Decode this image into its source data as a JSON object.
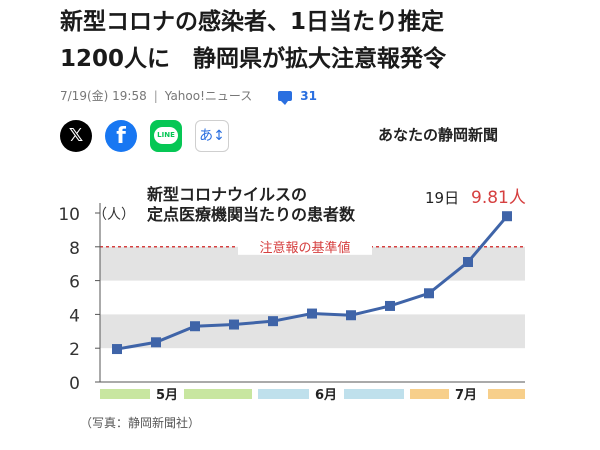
{
  "article": {
    "headline_lines": [
      "新型コロナの感染者、1日当たり推定",
      "1200人に　静岡県が拡大注意報発令"
    ],
    "date": "7/19(金) 19:58",
    "source": "Yahoo!ニュース",
    "comment_count": "31",
    "publisher": "あなたの静岡新聞",
    "photo_caption": "（写真：静岡新聞社）"
  },
  "share": {
    "x_label": "𝕏",
    "facebook_label": "f",
    "line_label": "LINE",
    "font_size_label": "あ↕"
  },
  "chart_data": {
    "type": "line",
    "title_lines": [
      "新型コロナウイルスの",
      "定点医療機関当たりの患者数"
    ],
    "unit_label": "（人）",
    "y_ticks": [
      "0",
      "2",
      "4",
      "6",
      "8",
      "10"
    ],
    "ylim": [
      0,
      10
    ],
    "grid": false,
    "threshold_value": 8,
    "threshold_label": "注意報の基準値",
    "values": [
      1.95,
      2.35,
      3.3,
      3.4,
      3.6,
      4.05,
      3.95,
      4.5,
      5.25,
      7.1,
      9.81
    ],
    "last_point_label_date": "19日",
    "last_point_label_value": "9.81人",
    "months": [
      {
        "label": "5月",
        "color": "#c8e6a0"
      },
      {
        "label": "6月",
        "color": "#bfe0ec"
      },
      {
        "label": "7月",
        "color": "#f7cf8b"
      }
    ],
    "colors": {
      "line": "#3f64a8",
      "threshold": "#d64040",
      "band": "#e3e3e3"
    }
  }
}
